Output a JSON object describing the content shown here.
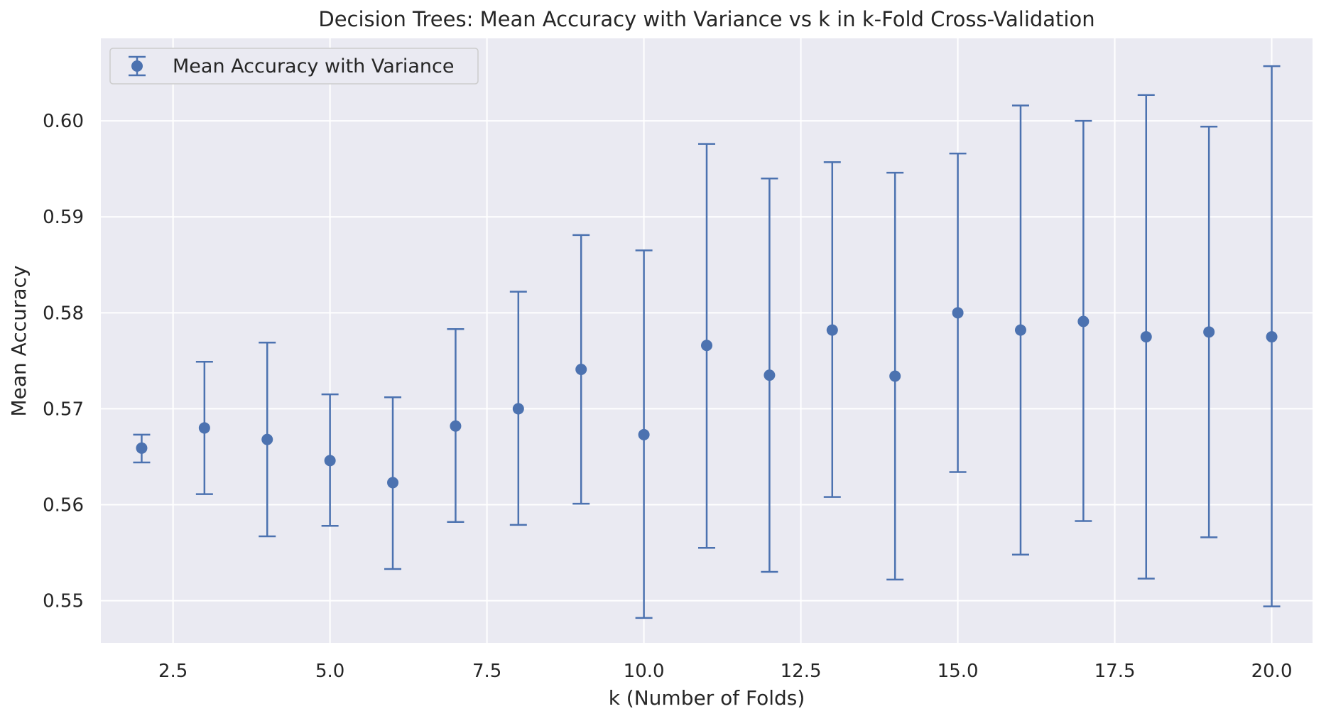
{
  "chart_data": {
    "type": "scatter",
    "title": "Decision Trees: Mean Accuracy with Variance vs k in k-Fold Cross-Validation",
    "xlabel": "k (Number of Folds)",
    "ylabel": "Mean Accuracy",
    "xlim": [
      1.35,
      20.65
    ],
    "ylim": [
      0.5456,
      0.6086
    ],
    "x_ticks": [
      2.5,
      5.0,
      7.5,
      10.0,
      12.5,
      15.0,
      17.5,
      20.0
    ],
    "x_tick_labels": [
      "2.5",
      "5.0",
      "7.5",
      "10.0",
      "12.5",
      "15.0",
      "17.5",
      "20.0"
    ],
    "y_ticks": [
      0.55,
      0.56,
      0.57,
      0.58,
      0.59,
      0.6
    ],
    "y_tick_labels": [
      "0.55",
      "0.56",
      "0.57",
      "0.58",
      "0.59",
      "0.60"
    ],
    "grid": true,
    "legend_position": "top-left",
    "series": [
      {
        "name": "Mean Accuracy with Variance",
        "color": "#4c72b0",
        "x": [
          2,
          3,
          4,
          5,
          6,
          7,
          8,
          9,
          10,
          11,
          12,
          13,
          14,
          15,
          16,
          17,
          18,
          19,
          20
        ],
        "y": [
          0.5659,
          0.568,
          0.5668,
          0.5646,
          0.5623,
          0.5682,
          0.57,
          0.5741,
          0.5673,
          0.5766,
          0.5735,
          0.5782,
          0.5734,
          0.58,
          0.5782,
          0.5791,
          0.5775,
          0.578,
          0.5775
        ],
        "err_low": [
          0.5644,
          0.5611,
          0.5567,
          0.5578,
          0.5533,
          0.5582,
          0.5579,
          0.5601,
          0.5482,
          0.5555,
          0.553,
          0.5608,
          0.5522,
          0.5634,
          0.5548,
          0.5583,
          0.5523,
          0.5566,
          0.5494
        ],
        "err_high": [
          0.5673,
          0.5749,
          0.5769,
          0.5715,
          0.5712,
          0.5783,
          0.5822,
          0.5881,
          0.5865,
          0.5976,
          0.594,
          0.5957,
          0.5946,
          0.5966,
          0.6016,
          0.6,
          0.6027,
          0.5994,
          0.6057
        ]
      }
    ]
  }
}
